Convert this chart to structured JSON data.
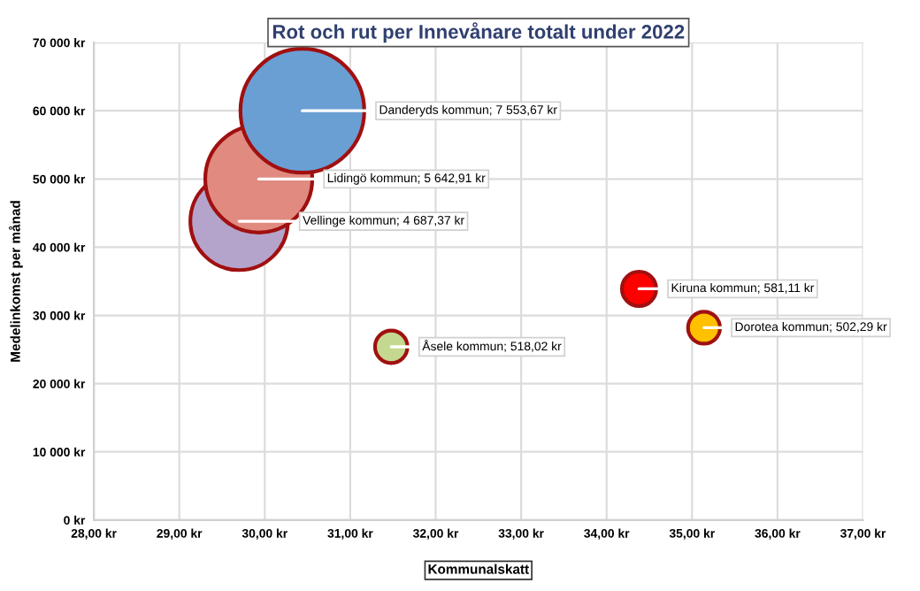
{
  "chart_data": {
    "type": "bubble",
    "title": "Rot och rut per Innevånare totalt under 2022",
    "xlabel": "Kommunalskatt",
    "ylabel": "Medelinkomst per månad",
    "x": [
      30.44,
      29.93,
      29.7,
      31.48,
      34.38,
      35.14
    ],
    "values": [
      60000,
      50000,
      43800,
      25400,
      33900,
      28200
    ],
    "sizes": [
      7553.67,
      5642.91,
      4687.37,
      518.02,
      581.11,
      502.29
    ],
    "colors": [
      "#6a9fd4",
      "#e08a80",
      "#b4a4cc",
      "#c4d890",
      "#ff0000",
      "#ffc000"
    ],
    "value_labels": [
      "Danderyds kommun; 7 553,67 kr",
      "Lidingö kommun; 5 642,91 kr",
      "Vellinge kommun; 4 687,37 kr",
      "Åsele kommun; 518,02 kr",
      "Kiruna kommun; 581,11 kr",
      "Dorotea kommun; 502,29 kr"
    ],
    "xlim": [
      28,
      37
    ],
    "xticks": [
      {
        "value": 28,
        "label": "28,00 kr"
      },
      {
        "value": 29,
        "label": "29,00 kr"
      },
      {
        "value": 30,
        "label": "30,00 kr"
      },
      {
        "value": 31,
        "label": "31,00 kr"
      },
      {
        "value": 32,
        "label": "32,00 kr"
      },
      {
        "value": 33,
        "label": "33,00 kr"
      },
      {
        "value": 34,
        "label": "34,00 kr"
      },
      {
        "value": 35,
        "label": "35,00 kr"
      },
      {
        "value": 36,
        "label": "36,00 kr"
      },
      {
        "value": 37,
        "label": "37,00 kr"
      }
    ],
    "ylim": [
      0,
      70000
    ],
    "yticks": [
      {
        "value": 0,
        "label": "0 kr"
      },
      {
        "value": 10000,
        "label": "10 000 kr"
      },
      {
        "value": 20000,
        "label": "20 000 kr"
      },
      {
        "value": 30000,
        "label": "30 000 kr"
      },
      {
        "value": 40000,
        "label": "40 000 kr"
      },
      {
        "value": 50000,
        "label": "50 000 kr"
      },
      {
        "value": 60000,
        "label": "60 000 kr"
      },
      {
        "value": 70000,
        "label": "70 000 kr"
      }
    ],
    "grid": true
  }
}
